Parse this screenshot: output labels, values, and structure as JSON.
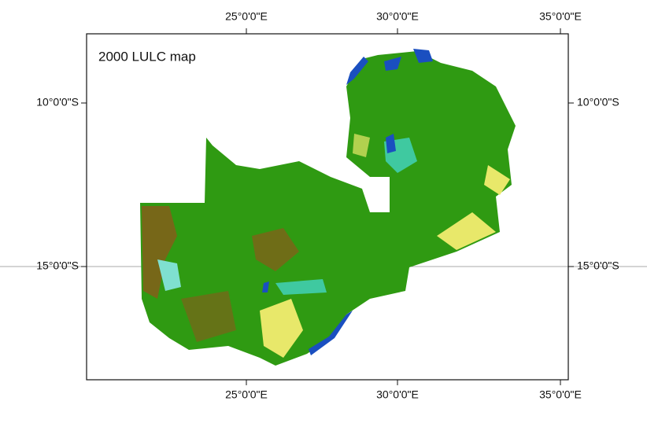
{
  "map": {
    "title": "2000 LULC map",
    "longitude_labels": [
      "25°0'0\"E",
      "30°0'0\"E",
      "35°0'0\"E"
    ],
    "latitude_labels": [
      "10°0'0\"S",
      "15°0'0\"S"
    ]
  }
}
